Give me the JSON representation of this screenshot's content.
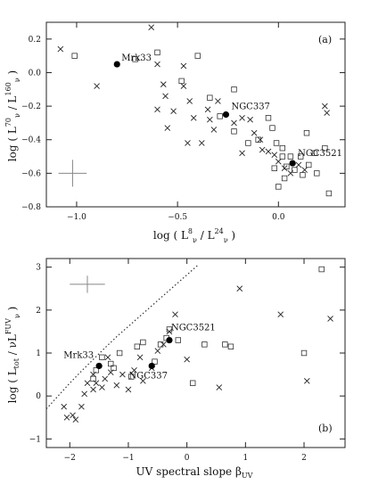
{
  "chart_data": [
    {
      "type": "scatter",
      "panel_label": "(a)",
      "xlabel": "log ( L_ν^8 / L_ν^24 )",
      "ylabel": "log ( L_ν^70 / L_ν^160 )",
      "xlim": [
        -1.15,
        0.33
      ],
      "ylim": [
        -0.8,
        0.3
      ],
      "xticks": [
        -1.0,
        -0.5,
        0.0
      ],
      "xtick_labels": [
        "−1.0",
        "−0.5",
        "0.0"
      ],
      "yticks": [
        0.2,
        0.0,
        -0.2,
        -0.4,
        -0.6,
        -0.8
      ],
      "ytick_labels": [
        "0.2",
        "0.0",
        "−0.2",
        "−0.4",
        "−0.6",
        "−0.8"
      ],
      "series": [
        {
          "marker": "cross",
          "points": [
            [
              -1.08,
              0.14
            ],
            [
              -0.9,
              -0.08
            ],
            [
              -0.63,
              0.27
            ],
            [
              -0.6,
              0.05
            ],
            [
              -0.57,
              -0.07
            ],
            [
              -0.56,
              -0.14
            ],
            [
              -0.6,
              -0.22
            ],
            [
              -0.52,
              -0.23
            ],
            [
              -0.47,
              0.04
            ],
            [
              -0.47,
              -0.08
            ],
            [
              -0.44,
              -0.17
            ],
            [
              -0.42,
              -0.27
            ],
            [
              -0.35,
              -0.22
            ],
            [
              -0.34,
              -0.28
            ],
            [
              -0.3,
              -0.17
            ],
            [
              -0.22,
              -0.3
            ],
            [
              -0.18,
              -0.27
            ],
            [
              -0.14,
              -0.28
            ],
            [
              -0.12,
              -0.36
            ],
            [
              -0.09,
              -0.4
            ],
            [
              -0.05,
              -0.47
            ],
            [
              -0.02,
              -0.49
            ],
            [
              0.0,
              -0.53
            ],
            [
              0.03,
              -0.57
            ],
            [
              0.06,
              -0.6
            ],
            [
              0.1,
              -0.55
            ],
            [
              0.13,
              -0.58
            ],
            [
              0.23,
              -0.2
            ],
            [
              0.24,
              -0.24
            ],
            [
              -0.32,
              -0.34
            ],
            [
              -0.38,
              -0.42
            ],
            [
              -0.45,
              -0.42
            ],
            [
              -0.55,
              -0.33
            ],
            [
              -0.18,
              -0.48
            ],
            [
              -0.08,
              -0.46
            ]
          ]
        },
        {
          "marker": "square",
          "points": [
            [
              -1.01,
              0.1
            ],
            [
              -0.71,
              0.08
            ],
            [
              -0.6,
              0.12
            ],
            [
              -0.48,
              -0.05
            ],
            [
              -0.4,
              0.1
            ],
            [
              -0.34,
              -0.15
            ],
            [
              -0.29,
              -0.26
            ],
            [
              -0.22,
              -0.1
            ],
            [
              -0.22,
              -0.35
            ],
            [
              -0.15,
              -0.42
            ],
            [
              -0.1,
              -0.4
            ],
            [
              -0.05,
              -0.27
            ],
            [
              -0.03,
              -0.33
            ],
            [
              -0.01,
              -0.42
            ],
            [
              0.02,
              -0.5
            ],
            [
              0.04,
              -0.56
            ],
            [
              0.06,
              -0.5
            ],
            [
              0.08,
              -0.58
            ],
            [
              0.12,
              -0.61
            ],
            [
              0.15,
              -0.55
            ],
            [
              0.18,
              -0.48
            ],
            [
              0.23,
              -0.45
            ],
            [
              0.25,
              -0.72
            ],
            [
              0.19,
              -0.6
            ],
            [
              0.11,
              -0.5
            ],
            [
              0.03,
              -0.63
            ],
            [
              0.0,
              -0.68
            ],
            [
              -0.02,
              -0.57
            ],
            [
              0.14,
              -0.36
            ],
            [
              0.02,
              -0.45
            ]
          ]
        },
        {
          "marker": "filled-circle",
          "points": [
            [
              -0.8,
              0.05
            ],
            [
              -0.26,
              -0.25
            ],
            [
              0.07,
              -0.54
            ]
          ]
        }
      ],
      "error_bar": {
        "x": -1.02,
        "y": -0.6,
        "dx": 0.07,
        "dy": 0.08
      },
      "annotations": [
        {
          "label": "Mrk33",
          "x": -0.8,
          "y": 0.05
        },
        {
          "label": "NGC337",
          "x": -0.26,
          "y": -0.25
        },
        {
          "label": "NGC3521",
          "x": 0.07,
          "y": -0.54
        }
      ]
    },
    {
      "type": "scatter",
      "panel_label": "(b)",
      "xlabel": "UV spectral slope β_UV",
      "ylabel": "log ( L_tot / νL_ν^FUV )",
      "xlim": [
        -2.4,
        2.7
      ],
      "ylim": [
        -1.2,
        3.2
      ],
      "xticks": [
        -2,
        -1,
        0,
        1,
        2
      ],
      "xtick_labels": [
        "−2",
        "−1",
        "0",
        "1",
        "2"
      ],
      "yticks": [
        3,
        2,
        1,
        0,
        -1
      ],
      "ytick_labels": [
        "3",
        "2",
        "1",
        "0",
        "−1"
      ],
      "series": [
        {
          "marker": "cross",
          "points": [
            [
              -2.05,
              -0.5
            ],
            [
              -1.95,
              -0.45
            ],
            [
              -1.9,
              -0.55
            ],
            [
              -2.1,
              -0.25
            ],
            [
              -1.8,
              -0.25
            ],
            [
              -1.75,
              0.05
            ],
            [
              -1.7,
              0.3
            ],
            [
              -1.6,
              0.15
            ],
            [
              -1.55,
              0.3
            ],
            [
              -1.6,
              0.5
            ],
            [
              -1.4,
              0.4
            ],
            [
              -1.3,
              0.55
            ],
            [
              -1.35,
              0.9
            ],
            [
              -1.2,
              0.25
            ],
            [
              -1.1,
              0.5
            ],
            [
              -1.0,
              0.15
            ],
            [
              -0.9,
              0.6
            ],
            [
              -0.8,
              0.9
            ],
            [
              -0.75,
              0.35
            ],
            [
              -0.6,
              0.65
            ],
            [
              -0.5,
              1.05
            ],
            [
              -0.4,
              1.2
            ],
            [
              -0.3,
              1.5
            ],
            [
              -0.2,
              1.9
            ],
            [
              0.0,
              0.85
            ],
            [
              0.55,
              0.2
            ],
            [
              0.9,
              2.5
            ],
            [
              1.6,
              1.9
            ],
            [
              2.05,
              0.35
            ],
            [
              2.45,
              1.8
            ],
            [
              -1.45,
              0.2
            ]
          ]
        },
        {
          "marker": "square",
          "points": [
            [
              -1.55,
              0.6
            ],
            [
              -1.45,
              0.9
            ],
            [
              -1.3,
              0.75
            ],
            [
              -1.25,
              0.65
            ],
            [
              -1.15,
              1.0
            ],
            [
              -0.95,
              0.45
            ],
            [
              -0.85,
              1.15
            ],
            [
              -0.75,
              1.25
            ],
            [
              -0.55,
              0.8
            ],
            [
              -0.45,
              1.2
            ],
            [
              -0.35,
              1.35
            ],
            [
              -0.3,
              1.55
            ],
            [
              -0.15,
              1.3
            ],
            [
              0.1,
              0.3
            ],
            [
              0.3,
              1.2
            ],
            [
              0.65,
              1.2
            ],
            [
              0.75,
              1.15
            ],
            [
              2.0,
              1.0
            ],
            [
              2.3,
              2.95
            ],
            [
              -1.6,
              0.4
            ]
          ]
        },
        {
          "marker": "filled-circle",
          "points": [
            [
              -1.5,
              0.7
            ],
            [
              -0.6,
              0.7
            ],
            [
              -0.3,
              1.3
            ]
          ]
        }
      ],
      "curve": {
        "style": "dotted",
        "x": [
          -2.4,
          -2.2,
          -2.0,
          -1.8,
          -1.6,
          -1.4,
          -1.2,
          -1.0,
          -0.8,
          -0.6,
          -0.4,
          -0.2,
          0.0,
          0.2
        ],
        "y": [
          -0.3,
          0.0,
          0.3,
          0.58,
          0.85,
          1.12,
          1.38,
          1.62,
          1.86,
          2.1,
          2.34,
          2.58,
          2.82,
          3.06
        ]
      },
      "error_bar": {
        "x": -1.7,
        "y": 2.6,
        "dx": 0.3,
        "dy": 0.2
      },
      "annotations": [
        {
          "label": "Mrk33",
          "x": -1.5,
          "y": 0.7
        },
        {
          "label": "NGC337",
          "x": -0.6,
          "y": 0.7
        },
        {
          "label": "NGC3521",
          "x": -0.3,
          "y": 1.3
        }
      ]
    }
  ]
}
